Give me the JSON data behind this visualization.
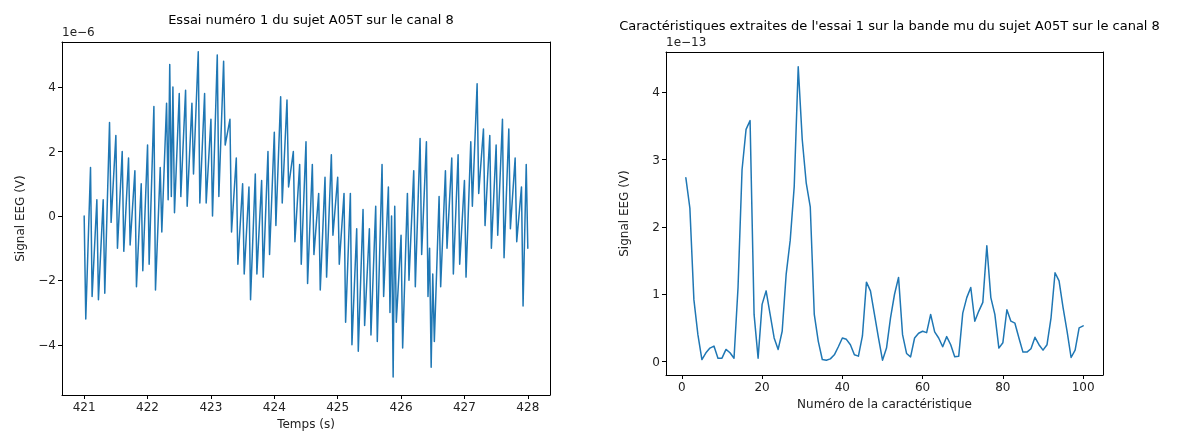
{
  "chart_data": [
    {
      "type": "line",
      "title": "Essai numéro 1 du sujet A05T sur le canal 8",
      "xlabel": "Temps (s)",
      "ylabel": "Signal EEG (V)",
      "annotations": [
        "1e−6"
      ],
      "xlim": [
        420.65,
        428.35
      ],
      "ylim": [
        -5.56,
        5.4
      ],
      "xticks": [
        421,
        422,
        423,
        424,
        425,
        426,
        427,
        428
      ],
      "yticks": [
        -4,
        -2,
        0,
        2,
        4
      ],
      "grid": false,
      "marker": "none",
      "line_style": "solid",
      "series": [
        {
          "color": "#1f77b4",
          "x": [
            421.0,
            421.025,
            421.1,
            421.125,
            421.2,
            421.225,
            421.3,
            421.325,
            421.4,
            421.425,
            421.5,
            421.525,
            421.6,
            421.625,
            421.7,
            421.725,
            421.8,
            421.825,
            421.9,
            421.925,
            422.0,
            422.025,
            422.1,
            422.125,
            422.2,
            422.225,
            422.3,
            422.325,
            422.35,
            422.375,
            422.4,
            422.425,
            422.5,
            422.525,
            422.6,
            422.625,
            422.7,
            422.725,
            422.8,
            422.825,
            422.9,
            422.925,
            423.0,
            423.025,
            423.1,
            423.125,
            423.2,
            423.225,
            423.3,
            423.325,
            423.4,
            423.425,
            423.5,
            423.525,
            423.6,
            423.625,
            423.7,
            423.725,
            423.8,
            423.825,
            423.9,
            423.925,
            424.0,
            424.025,
            424.1,
            424.125,
            424.2,
            424.225,
            424.3,
            424.325,
            424.4,
            424.425,
            424.5,
            424.525,
            424.6,
            424.625,
            424.7,
            424.725,
            424.8,
            424.825,
            424.9,
            424.925,
            425.0,
            425.025,
            425.1,
            425.125,
            425.2,
            425.225,
            425.3,
            425.325,
            425.4,
            425.425,
            425.5,
            425.525,
            425.6,
            425.625,
            425.7,
            425.725,
            425.8,
            425.825,
            425.85,
            425.875,
            425.9,
            425.925,
            426.0,
            426.025,
            426.1,
            426.125,
            426.2,
            426.225,
            426.3,
            426.325,
            426.4,
            426.425,
            426.45,
            426.475,
            426.5,
            426.525,
            426.6,
            426.625,
            426.7,
            426.725,
            426.8,
            426.825,
            426.9,
            426.925,
            427.0,
            427.025,
            427.1,
            427.125,
            427.2,
            427.225,
            427.3,
            427.325,
            427.4,
            427.425,
            427.5,
            427.525,
            427.6,
            427.625,
            427.7,
            427.725,
            427.8,
            427.825,
            427.9,
            427.925,
            427.975,
            428.0
          ],
          "values": [
            0,
            -3.2,
            1.5,
            -2.5,
            0.5,
            -2.6,
            0.5,
            -2.4,
            2.9,
            -0.2,
            2.5,
            -1.0,
            2.0,
            -1.1,
            1.8,
            -0.9,
            1.4,
            -2.2,
            1.0,
            -1.7,
            2.2,
            -1.5,
            3.4,
            -2.3,
            1.5,
            -0.5,
            3.5,
            0.5,
            4.7,
            0.6,
            4.0,
            0.1,
            3.8,
            0.6,
            3.9,
            0.3,
            3.5,
            1.3,
            5.1,
            0.4,
            3.8,
            0.4,
            3.0,
            0,
            5.0,
            0.6,
            4.8,
            2.2,
            3.0,
            -0.5,
            1.8,
            -1.5,
            1.0,
            -1.8,
            0.9,
            -2.6,
            1.3,
            -1.8,
            1.1,
            -1.9,
            2.0,
            -1.2,
            2.6,
            -0.3,
            3.7,
            0.4,
            3.6,
            0.9,
            2.0,
            -0.8,
            1.6,
            -1.5,
            2.3,
            -2.1,
            1.6,
            -1.2,
            0.7,
            -2.3,
            1.2,
            -1.9,
            1.9,
            -0.6,
            1.2,
            -1.5,
            0.7,
            -3.3,
            0.7,
            -4.0,
            -0.4,
            -4.2,
            0.2,
            -3.4,
            -0.4,
            -3.7,
            0.3,
            -3.9,
            1.6,
            -2.5,
            0.9,
            -3.0,
            0,
            -5.0,
            0.3,
            -3.3,
            -0.6,
            -4.1,
            0.7,
            -2.0,
            1.4,
            -2.2,
            2.4,
            -1.2,
            2.3,
            -2.5,
            -1.0,
            -4.7,
            -1.8,
            -3.9,
            0.6,
            -2.2,
            1.4,
            -1.0,
            1.8,
            -1.8,
            1.9,
            -1.5,
            1.1,
            -1.9,
            2.3,
            0.3,
            4.1,
            0.7,
            2.7,
            -0.3,
            2.5,
            -1.0,
            2.2,
            -0.6,
            3.0,
            -1.3,
            2.7,
            -0.4,
            1.8,
            -0.8,
            0.9,
            -2.8,
            1.6,
            -1.0
          ]
        }
      ]
    },
    {
      "type": "line",
      "title": "Caractéristiques extraites de l'essai 1 sur la bande mu du sujet A05T sur le canal 8",
      "xlabel": "Numéro de la caractéristique",
      "ylabel": "Signal EEG (V)",
      "annotations": [
        "1e−13"
      ],
      "xlim": [
        -3.95,
        104.95
      ],
      "ylim": [
        -0.2,
        4.6
      ],
      "xticks": [
        0,
        20,
        40,
        60,
        80,
        100
      ],
      "yticks": [
        0,
        1,
        2,
        3,
        4
      ],
      "grid": false,
      "marker": "none",
      "line_style": "solid",
      "series": [
        {
          "color": "#1f77b4",
          "x": [
            1,
            2,
            3,
            4,
            5,
            6,
            7,
            8,
            9,
            10,
            11,
            12,
            13,
            14,
            15,
            16,
            17,
            18,
            19,
            20,
            21,
            22,
            23,
            24,
            25,
            26,
            27,
            28,
            29,
            30,
            31,
            32,
            33,
            34,
            35,
            36,
            37,
            38,
            39,
            40,
            41,
            42,
            43,
            44,
            45,
            46,
            47,
            48,
            49,
            50,
            51,
            52,
            53,
            54,
            55,
            56,
            57,
            58,
            59,
            60,
            61,
            62,
            63,
            64,
            65,
            66,
            67,
            68,
            69,
            70,
            71,
            72,
            73,
            74,
            75,
            76,
            77,
            78,
            79,
            80,
            81,
            82,
            83,
            84,
            85,
            86,
            87,
            88,
            89,
            90,
            91,
            92,
            93,
            94,
            95,
            96,
            97,
            98,
            99,
            100
          ],
          "values": [
            2.73,
            2.28,
            0.92,
            0.4,
            0.03,
            0.13,
            0.2,
            0.23,
            0.05,
            0.05,
            0.18,
            0.13,
            0.05,
            1.1,
            2.85,
            3.45,
            3.58,
            0.7,
            0.05,
            0.85,
            1.05,
            0.7,
            0.35,
            0.18,
            0.45,
            1.3,
            1.8,
            2.6,
            4.38,
            3.3,
            2.65,
            2.3,
            0.7,
            0.3,
            0.03,
            0.02,
            0.04,
            0.1,
            0.22,
            0.35,
            0.33,
            0.25,
            0.1,
            0.08,
            0.38,
            1.18,
            1.05,
            0.7,
            0.35,
            0.02,
            0.2,
            0.65,
            1.0,
            1.25,
            0.4,
            0.12,
            0.07,
            0.35,
            0.42,
            0.45,
            0.43,
            0.7,
            0.44,
            0.35,
            0.22,
            0.37,
            0.25,
            0.07,
            0.08,
            0.72,
            0.95,
            1.1,
            0.6,
            0.75,
            0.88,
            1.72,
            0.95,
            0.7,
            0.2,
            0.28,
            0.77,
            0.6,
            0.57,
            0.35,
            0.14,
            0.14,
            0.19,
            0.36,
            0.25,
            0.17,
            0.25,
            0.65,
            1.32,
            1.2,
            0.8,
            0.45,
            0.06,
            0.17,
            0.5,
            0.53
          ]
        }
      ]
    }
  ]
}
